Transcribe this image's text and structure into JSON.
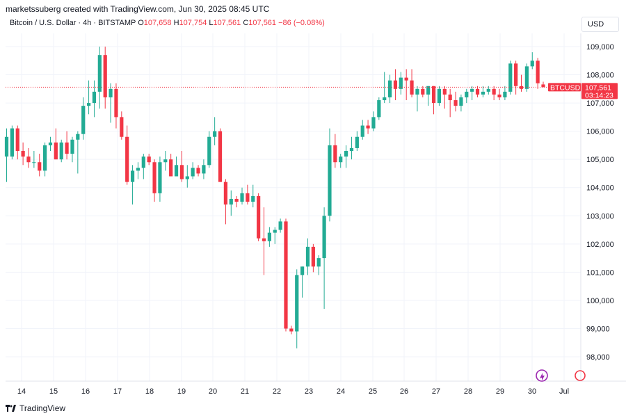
{
  "header": {
    "attribution": "marketssuberg created with TradingView.com, Jun 30, 2025 08:45 UTC"
  },
  "symbol": {
    "name": "Bitcoin / U.S. Dollar · 4h · BITSTAMP",
    "o_label": "O",
    "o_value": "107,658",
    "h_label": "H",
    "h_value": "107,754",
    "l_label": "L",
    "l_value": "107,561",
    "c_label": "C",
    "c_value": "107,561",
    "change": "−86 (−0.08%)"
  },
  "currency": "USD",
  "price_tag": {
    "ticker": "BTCUSD",
    "price": "107,561",
    "countdown": "03:14:23"
  },
  "footer": {
    "brand": "TradingView"
  },
  "colors": {
    "up": "#22ab94",
    "down": "#f23645",
    "grid": "#f0f3fa"
  },
  "chart_data": {
    "type": "candlestick",
    "title": "Bitcoin / U.S. Dollar · 4h · BITSTAMP",
    "ylim": [
      97500,
      109500
    ],
    "y_ticks": [
      98000,
      99000,
      100000,
      101000,
      102000,
      103000,
      104000,
      105000,
      106000,
      107000,
      108000,
      109000
    ],
    "y_tick_labels": [
      "98,000",
      "99,000",
      "100,000",
      "101,000",
      "102,000",
      "103,000",
      "104,000",
      "105,000",
      "106,000",
      "107,000",
      "108,000",
      "109,000"
    ],
    "x_tick_labels": [
      "14",
      "15",
      "16",
      "17",
      "18",
      "19",
      "20",
      "21",
      "22",
      "23",
      "24",
      "25",
      "26",
      "27",
      "28",
      "29",
      "30",
      "Jul"
    ],
    "last_price": 107561,
    "grid": true,
    "candles": [
      {
        "o": 105100,
        "h": 106100,
        "l": 104200,
        "c": 105800
      },
      {
        "o": 105100,
        "h": 106200,
        "l": 105000,
        "c": 106100
      },
      {
        "o": 106100,
        "h": 106200,
        "l": 105000,
        "c": 105300
      },
      {
        "o": 105300,
        "h": 105600,
        "l": 104800,
        "c": 105100
      },
      {
        "o": 105100,
        "h": 105400,
        "l": 104700,
        "c": 104900
      },
      {
        "o": 104900,
        "h": 105300,
        "l": 104700,
        "c": 104900
      },
      {
        "o": 104900,
        "h": 105200,
        "l": 104400,
        "c": 104600
      },
      {
        "o": 104600,
        "h": 105600,
        "l": 104400,
        "c": 105500
      },
      {
        "o": 105500,
        "h": 105800,
        "l": 105300,
        "c": 105600
      },
      {
        "o": 105600,
        "h": 106100,
        "l": 105000,
        "c": 105000
      },
      {
        "o": 105000,
        "h": 105700,
        "l": 104900,
        "c": 105600
      },
      {
        "o": 105600,
        "h": 106000,
        "l": 105000,
        "c": 105200
      },
      {
        "o": 105200,
        "h": 105800,
        "l": 104900,
        "c": 105700
      },
      {
        "o": 105700,
        "h": 106000,
        "l": 104500,
        "c": 105900
      },
      {
        "o": 105900,
        "h": 107200,
        "l": 105700,
        "c": 106900
      },
      {
        "o": 106900,
        "h": 107800,
        "l": 106600,
        "c": 107000
      },
      {
        "o": 107000,
        "h": 107800,
        "l": 106500,
        "c": 107400
      },
      {
        "o": 107400,
        "h": 109000,
        "l": 106800,
        "c": 108700
      },
      {
        "o": 108700,
        "h": 109000,
        "l": 106800,
        "c": 107200
      },
      {
        "o": 107200,
        "h": 107700,
        "l": 106300,
        "c": 107500
      },
      {
        "o": 107500,
        "h": 107700,
        "l": 106100,
        "c": 106500
      },
      {
        "o": 106500,
        "h": 106700,
        "l": 105700,
        "c": 105800
      },
      {
        "o": 105800,
        "h": 106200,
        "l": 104100,
        "c": 104200
      },
      {
        "o": 104200,
        "h": 104800,
        "l": 103400,
        "c": 104600
      },
      {
        "o": 104600,
        "h": 104900,
        "l": 104300,
        "c": 104700
      },
      {
        "o": 104700,
        "h": 105200,
        "l": 104300,
        "c": 105100
      },
      {
        "o": 105100,
        "h": 105200,
        "l": 104800,
        "c": 104900
      },
      {
        "o": 104900,
        "h": 105000,
        "l": 103500,
        "c": 103800
      },
      {
        "o": 103800,
        "h": 105100,
        "l": 103500,
        "c": 104900
      },
      {
        "o": 104900,
        "h": 105300,
        "l": 104600,
        "c": 105000
      },
      {
        "o": 105000,
        "h": 105200,
        "l": 104400,
        "c": 104400
      },
      {
        "o": 104400,
        "h": 105100,
        "l": 104400,
        "c": 104800
      },
      {
        "o": 104800,
        "h": 105300,
        "l": 104200,
        "c": 104300
      },
      {
        "o": 104300,
        "h": 104800,
        "l": 104000,
        "c": 104400
      },
      {
        "o": 104400,
        "h": 104900,
        "l": 104300,
        "c": 104700
      },
      {
        "o": 104700,
        "h": 104800,
        "l": 104400,
        "c": 104500
      },
      {
        "o": 104500,
        "h": 105000,
        "l": 104300,
        "c": 104800
      },
      {
        "o": 104800,
        "h": 106000,
        "l": 104700,
        "c": 105800
      },
      {
        "o": 105800,
        "h": 106500,
        "l": 105500,
        "c": 106000
      },
      {
        "o": 106000,
        "h": 106100,
        "l": 104200,
        "c": 104200
      },
      {
        "o": 104200,
        "h": 104300,
        "l": 102700,
        "c": 103400
      },
      {
        "o": 103400,
        "h": 103900,
        "l": 103000,
        "c": 103600
      },
      {
        "o": 103600,
        "h": 103700,
        "l": 103300,
        "c": 103500
      },
      {
        "o": 103500,
        "h": 104000,
        "l": 103400,
        "c": 103800
      },
      {
        "o": 103800,
        "h": 104100,
        "l": 103400,
        "c": 103500
      },
      {
        "o": 103500,
        "h": 104100,
        "l": 103300,
        "c": 103700
      },
      {
        "o": 103700,
        "h": 103800,
        "l": 102100,
        "c": 102200
      },
      {
        "o": 102200,
        "h": 103300,
        "l": 100900,
        "c": 102100
      },
      {
        "o": 102100,
        "h": 102600,
        "l": 101900,
        "c": 102400
      },
      {
        "o": 102400,
        "h": 102600,
        "l": 102000,
        "c": 102500
      },
      {
        "o": 102500,
        "h": 102900,
        "l": 102400,
        "c": 102800
      },
      {
        "o": 102800,
        "h": 102900,
        "l": 98900,
        "c": 99000
      },
      {
        "o": 99000,
        "h": 99100,
        "l": 98800,
        "c": 98900
      },
      {
        "o": 98900,
        "h": 101100,
        "l": 98300,
        "c": 100900
      },
      {
        "o": 100900,
        "h": 101200,
        "l": 100100,
        "c": 101200
      },
      {
        "o": 101200,
        "h": 102200,
        "l": 100900,
        "c": 101900
      },
      {
        "o": 101900,
        "h": 102000,
        "l": 101000,
        "c": 101200
      },
      {
        "o": 101200,
        "h": 101600,
        "l": 100900,
        "c": 101500
      },
      {
        "o": 101500,
        "h": 103300,
        "l": 99700,
        "c": 103000
      },
      {
        "o": 103000,
        "h": 106100,
        "l": 102800,
        "c": 105500
      },
      {
        "o": 105500,
        "h": 105900,
        "l": 104700,
        "c": 104900
      },
      {
        "o": 104900,
        "h": 105200,
        "l": 104700,
        "c": 105100
      },
      {
        "o": 105100,
        "h": 105500,
        "l": 104700,
        "c": 105300
      },
      {
        "o": 105300,
        "h": 105800,
        "l": 105000,
        "c": 105400
      },
      {
        "o": 105400,
        "h": 106000,
        "l": 105300,
        "c": 105800
      },
      {
        "o": 105800,
        "h": 106400,
        "l": 105700,
        "c": 106200
      },
      {
        "o": 106200,
        "h": 106400,
        "l": 105900,
        "c": 106100
      },
      {
        "o": 106100,
        "h": 106700,
        "l": 106000,
        "c": 106500
      },
      {
        "o": 106500,
        "h": 107200,
        "l": 106400,
        "c": 107100
      },
      {
        "o": 107100,
        "h": 108100,
        "l": 107000,
        "c": 107200
      },
      {
        "o": 107200,
        "h": 108000,
        "l": 107000,
        "c": 107800
      },
      {
        "o": 107800,
        "h": 108200,
        "l": 107100,
        "c": 107500
      },
      {
        "o": 107500,
        "h": 108100,
        "l": 107300,
        "c": 107900
      },
      {
        "o": 107900,
        "h": 108200,
        "l": 107100,
        "c": 107800
      },
      {
        "o": 107800,
        "h": 108200,
        "l": 107200,
        "c": 107300
      },
      {
        "o": 107300,
        "h": 107600,
        "l": 106700,
        "c": 107500
      },
      {
        "o": 107500,
        "h": 107600,
        "l": 107200,
        "c": 107300
      },
      {
        "o": 107300,
        "h": 107600,
        "l": 106900,
        "c": 107600
      },
      {
        "o": 107600,
        "h": 107600,
        "l": 106600,
        "c": 107000
      },
      {
        "o": 107000,
        "h": 107600,
        "l": 106900,
        "c": 107500
      },
      {
        "o": 107500,
        "h": 107600,
        "l": 106800,
        "c": 107300
      },
      {
        "o": 107300,
        "h": 107500,
        "l": 106500,
        "c": 107100
      },
      {
        "o": 107100,
        "h": 107400,
        "l": 106700,
        "c": 106900
      },
      {
        "o": 106900,
        "h": 107300,
        "l": 106700,
        "c": 107200
      },
      {
        "o": 107200,
        "h": 107500,
        "l": 107000,
        "c": 107400
      },
      {
        "o": 107400,
        "h": 107600,
        "l": 107100,
        "c": 107500
      },
      {
        "o": 107500,
        "h": 107600,
        "l": 107200,
        "c": 107300
      },
      {
        "o": 107300,
        "h": 107600,
        "l": 107200,
        "c": 107400
      },
      {
        "o": 107400,
        "h": 107600,
        "l": 107300,
        "c": 107500
      },
      {
        "o": 107500,
        "h": 107600,
        "l": 107100,
        "c": 107300
      },
      {
        "o": 107300,
        "h": 107500,
        "l": 107100,
        "c": 107200
      },
      {
        "o": 107200,
        "h": 107600,
        "l": 107100,
        "c": 107400
      },
      {
        "o": 107400,
        "h": 108500,
        "l": 107300,
        "c": 108400
      },
      {
        "o": 108400,
        "h": 108500,
        "l": 107300,
        "c": 107600
      },
      {
        "o": 107600,
        "h": 108000,
        "l": 107400,
        "c": 107500
      },
      {
        "o": 107500,
        "h": 108400,
        "l": 107400,
        "c": 108300
      },
      {
        "o": 108300,
        "h": 108800,
        "l": 108200,
        "c": 108500
      },
      {
        "o": 108500,
        "h": 108600,
        "l": 107500,
        "c": 107700
      },
      {
        "o": 107658,
        "h": 107754,
        "l": 107561,
        "c": 107561
      }
    ]
  }
}
